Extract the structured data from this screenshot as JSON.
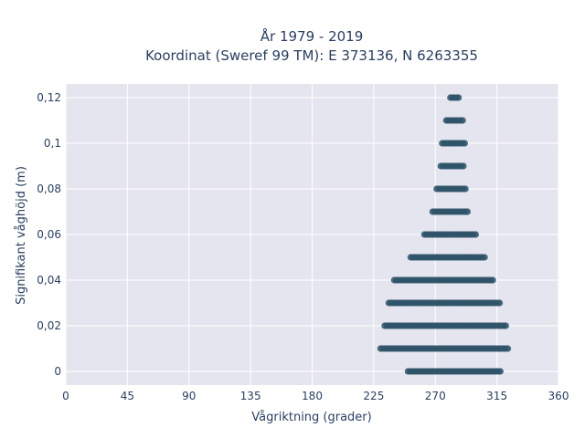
{
  "chart_data": {
    "type": "scatter",
    "title_line1": "År 1979 - 2019",
    "title_line2": "Koordinat (Sweref 99 TM): E 373136, N 6263355",
    "xlabel": "Vågriktning (grader)",
    "ylabel": "Signifikant våghöjd (m)",
    "xlim": [
      0,
      360
    ],
    "ylim": [
      -0.006,
      0.126
    ],
    "x_ticks": [
      0,
      45,
      90,
      135,
      180,
      225,
      270,
      315,
      360
    ],
    "y_ticks": [
      0,
      0.02,
      0.04,
      0.06,
      0.08,
      0.1,
      0.12
    ],
    "y_tick_labels": [
      "0",
      "0,02",
      "0,04",
      "0,06",
      "0,08",
      "0,1",
      "0,12"
    ],
    "grid": true,
    "marker_color": "#2f5468",
    "background_color": "#e5e5ef",
    "series": [
      {
        "points_by_height": [
          {
            "y": 0.0,
            "x_min": 250,
            "x_max": 318
          },
          {
            "y": 0.01,
            "x_min": 230,
            "x_max": 324
          },
          {
            "y": 0.02,
            "x_min": 233,
            "x_max": 322
          },
          {
            "y": 0.03,
            "x_min": 236,
            "x_max": 317
          },
          {
            "y": 0.04,
            "x_min": 240,
            "x_max": 312
          },
          {
            "y": 0.05,
            "x_min": 252,
            "x_max": 307
          },
          {
            "y": 0.06,
            "x_min": 262,
            "x_max": 300
          },
          {
            "y": 0.07,
            "x_min": 268,
            "x_max": 294
          },
          {
            "y": 0.08,
            "x_min": 271,
            "x_max": 292
          },
          {
            "y": 0.09,
            "x_min": 274,
            "x_max": 291
          },
          {
            "y": 0.1,
            "x_min": 275,
            "x_max": 292
          },
          {
            "y": 0.11,
            "x_min": 278,
            "x_max": 290
          },
          {
            "y": 0.12,
            "x_min": 281,
            "x_max": 287
          }
        ]
      }
    ]
  }
}
